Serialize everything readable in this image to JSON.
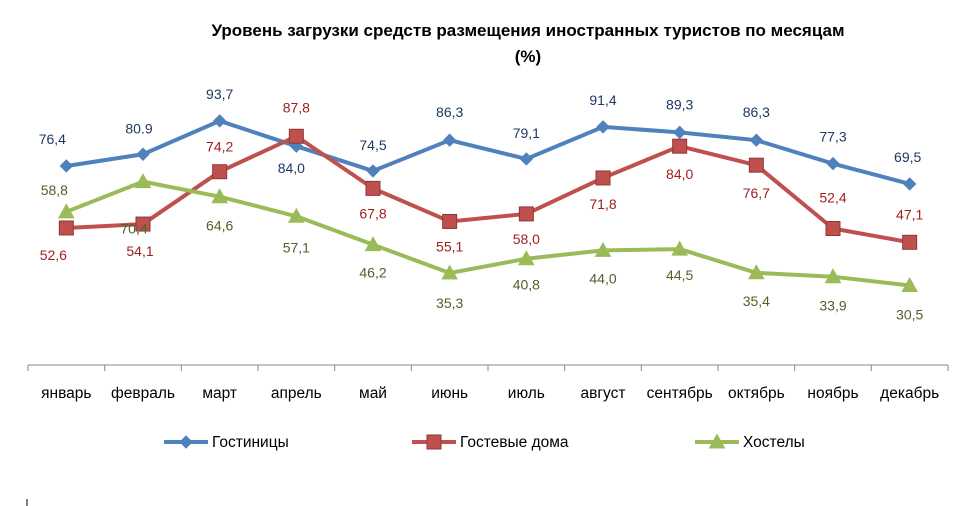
{
  "chart_data": {
    "type": "line",
    "title_line1": "Уровень загрузки средств размещения иностранных туристов по месяцам",
    "title_line2": "(%)",
    "categories": [
      "январь",
      "февраль",
      "март",
      "апрель",
      "май",
      "июнь",
      "июль",
      "август",
      "сентябрь",
      "октябрь",
      "ноябрь",
      "декабрь"
    ],
    "ylim": [
      0,
      120
    ],
    "grid": false,
    "legend_position": "bottom",
    "series": [
      {
        "name": "Гостиницы",
        "color": "#4F81BD",
        "label_color": "#1F3864",
        "marker": "diamond",
        "values": [
          76.4,
          80.9,
          93.7,
          84.0,
          74.5,
          86.3,
          79.1,
          91.4,
          89.3,
          86.3,
          77.3,
          69.5
        ],
        "labels": [
          "76,4",
          "80.9",
          "93,7",
          "84,0",
          "74,5",
          "86,3",
          "79,1",
          "91,4",
          "89,3",
          "86,3",
          "77,3",
          "69,5"
        ]
      },
      {
        "name": "Гостевые дома",
        "color": "#C0504D",
        "label_color": "#A02020",
        "marker": "square",
        "values": [
          52.6,
          54.1,
          74.2,
          87.8,
          67.8,
          55.1,
          58.0,
          71.8,
          84.0,
          76.7,
          52.4,
          47.1
        ],
        "labels": [
          "52,6",
          "54,1",
          "74,2",
          "87,8",
          "67,8",
          "55,1",
          "58,0",
          "71,8",
          "84,0",
          "76,7",
          "52,4",
          "47,1"
        ]
      },
      {
        "name": "Хостелы",
        "color": "#9BBB59",
        "label_color": "#4F6228",
        "marker": "triangle",
        "values": [
          58.8,
          70.4,
          64.6,
          57.1,
          46.2,
          35.3,
          40.8,
          44.0,
          44.5,
          35.4,
          33.9,
          30.5
        ],
        "labels": [
          "58,8",
          "70,4",
          "64,6",
          "57,1",
          "46,2",
          "35,3",
          "40,8",
          "44,0",
          "44,5",
          "35,4",
          "33,9",
          "30,5"
        ]
      }
    ]
  }
}
